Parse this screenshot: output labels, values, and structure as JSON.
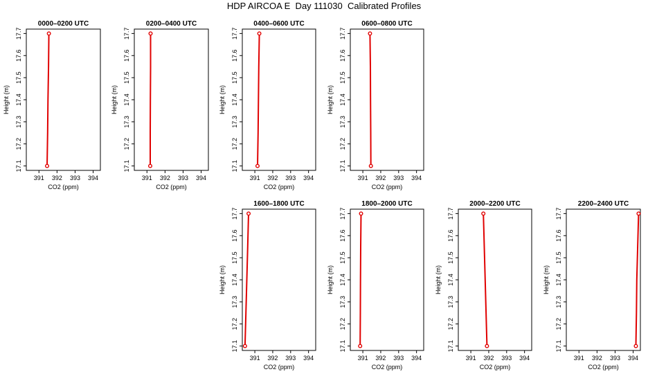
{
  "title": "HDP AIRCOA E  Day 111030  Calibrated Profiles",
  "chart_data": [
    {
      "type": "line",
      "title": "0000–0200 UTC",
      "xlabel": "CO2 (ppm)",
      "ylabel": "Height (m)",
      "xlim": [
        390.3,
        394.4
      ],
      "ylim": [
        17.08,
        17.72
      ],
      "xticks": [
        "391",
        "392",
        "393",
        "394"
      ],
      "yticks": [
        "17.1",
        "17.2",
        "17.3",
        "17.4",
        "17.5",
        "17.6",
        "17.7"
      ],
      "x": [
        391.45,
        391.48,
        391.5,
        391.53,
        391.55
      ],
      "y": [
        17.1,
        17.25,
        17.4,
        17.55,
        17.7
      ],
      "color": "#e00000"
    },
    {
      "type": "line",
      "title": "0200–0400 UTC",
      "xlabel": "CO2 (ppm)",
      "ylabel": "Height (m)",
      "xlim": [
        390.3,
        394.4
      ],
      "ylim": [
        17.08,
        17.72
      ],
      "xticks": [
        "391",
        "392",
        "393",
        "394"
      ],
      "yticks": [
        "17.1",
        "17.2",
        "17.3",
        "17.4",
        "17.5",
        "17.6",
        "17.7"
      ],
      "x": [
        391.18,
        391.18,
        391.19,
        391.2,
        391.2
      ],
      "y": [
        17.1,
        17.25,
        17.4,
        17.55,
        17.7
      ],
      "color": "#e00000"
    },
    {
      "type": "line",
      "title": "0400–0600 UTC",
      "xlabel": "CO2 (ppm)",
      "ylabel": "Height (m)",
      "xlim": [
        390.3,
        394.4
      ],
      "ylim": [
        17.08,
        17.72
      ],
      "xticks": [
        "391",
        "392",
        "393",
        "394"
      ],
      "yticks": [
        "17.1",
        "17.2",
        "17.3",
        "17.4",
        "17.5",
        "17.6",
        "17.7"
      ],
      "x": [
        391.15,
        391.18,
        391.2,
        391.22,
        391.25
      ],
      "y": [
        17.1,
        17.25,
        17.4,
        17.55,
        17.7
      ],
      "color": "#e00000"
    },
    {
      "type": "line",
      "title": "0600–0800 UTC",
      "xlabel": "CO2 (ppm)",
      "ylabel": "Height (m)",
      "xlim": [
        390.3,
        394.4
      ],
      "ylim": [
        17.08,
        17.72
      ],
      "xticks": [
        "391",
        "392",
        "393",
        "394"
      ],
      "yticks": [
        "17.1",
        "17.2",
        "17.3",
        "17.4",
        "17.5",
        "17.6",
        "17.7"
      ],
      "x": [
        391.45,
        391.44,
        391.43,
        391.42,
        391.4
      ],
      "y": [
        17.1,
        17.25,
        17.4,
        17.55,
        17.7
      ],
      "color": "#e00000"
    },
    {
      "type": "line",
      "title": "1600–1800 UTC",
      "xlabel": "CO2 (ppm)",
      "ylabel": "Height (m)",
      "xlim": [
        390.3,
        394.4
      ],
      "ylim": [
        17.08,
        17.72
      ],
      "xticks": [
        "391",
        "392",
        "393",
        "394"
      ],
      "yticks": [
        "17.1",
        "17.2",
        "17.3",
        "17.4",
        "17.5",
        "17.6",
        "17.7"
      ],
      "x": [
        390.45,
        390.5,
        390.55,
        390.6,
        390.65
      ],
      "y": [
        17.1,
        17.25,
        17.4,
        17.55,
        17.7
      ],
      "color": "#e00000"
    },
    {
      "type": "line",
      "title": "1800–2000 UTC",
      "xlabel": "CO2 (ppm)",
      "ylabel": "Height (m)",
      "xlim": [
        390.3,
        394.4
      ],
      "ylim": [
        17.08,
        17.72
      ],
      "xticks": [
        "391",
        "392",
        "393",
        "394"
      ],
      "yticks": [
        "17.1",
        "17.2",
        "17.3",
        "17.4",
        "17.5",
        "17.6",
        "17.7"
      ],
      "x": [
        390.85,
        390.86,
        390.87,
        390.88,
        390.9
      ],
      "y": [
        17.1,
        17.25,
        17.4,
        17.55,
        17.7
      ],
      "color": "#e00000"
    },
    {
      "type": "line",
      "title": "2000–2200 UTC",
      "xlabel": "CO2 (ppm)",
      "ylabel": "Height (m)",
      "xlim": [
        390.3,
        394.4
      ],
      "ylim": [
        17.08,
        17.72
      ],
      "xticks": [
        "391",
        "392",
        "393",
        "394"
      ],
      "yticks": [
        "17.1",
        "17.2",
        "17.3",
        "17.4",
        "17.5",
        "17.6",
        "17.7"
      ],
      "x": [
        391.9,
        391.85,
        391.8,
        391.75,
        391.7
      ],
      "y": [
        17.1,
        17.25,
        17.4,
        17.55,
        17.7
      ],
      "color": "#e00000"
    },
    {
      "type": "line",
      "title": "2200–2400 UTC",
      "xlabel": "CO2 (ppm)",
      "ylabel": "Height (m)",
      "xlim": [
        390.3,
        394.4
      ],
      "ylim": [
        17.08,
        17.72
      ],
      "xticks": [
        "391",
        "392",
        "393",
        "394"
      ],
      "yticks": [
        "17.1",
        "17.2",
        "17.3",
        "17.4",
        "17.5",
        "17.6",
        "17.7"
      ],
      "x": [
        394.15,
        394.18,
        394.2,
        394.25,
        394.3
      ],
      "y": [
        17.1,
        17.25,
        17.4,
        17.55,
        17.7
      ],
      "color": "#e00000"
    }
  ]
}
